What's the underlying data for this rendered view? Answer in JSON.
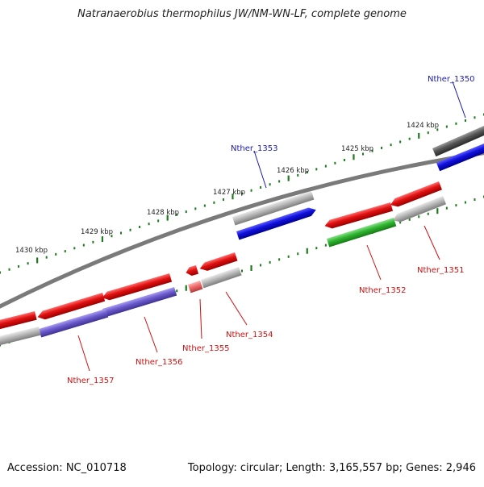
{
  "title": "Natranaerobius thermophilus JW/NM-WN-LF, complete genome",
  "footer": {
    "accession": "Accession: NC_010718",
    "summary": "Topology: circular; Length: 3,165,557 bp; Genes: 2,946"
  },
  "ticks": [
    {
      "label": "1424 kbp"
    },
    {
      "label": "1425 kbp"
    },
    {
      "label": "1426 kbp"
    },
    {
      "label": "1427 kbp"
    },
    {
      "label": "1428 kbp"
    },
    {
      "label": "1429 kbp"
    },
    {
      "label": "1430 kbp"
    }
  ],
  "genes": [
    {
      "label": "Nther_1350",
      "color": "#1a1aa8"
    },
    {
      "label": "Nther_1351",
      "color": "#cc1111"
    },
    {
      "label": "Nther_1352",
      "color": "#cc1111"
    },
    {
      "label": "Nther_1353",
      "color": "#1a1aa8"
    },
    {
      "label": "Nther_1354",
      "color": "#cc1111"
    },
    {
      "label": "Nther_1355",
      "color": "#cc1111"
    },
    {
      "label": "Nther_1356",
      "color": "#cc1111"
    },
    {
      "label": "Nther_1357",
      "color": "#cc1111"
    }
  ],
  "colors": {
    "backbone": "#777777",
    "tick": "#1e7a1e",
    "feature_red": "#e01010",
    "feature_blue": "#1010dd",
    "feature_green": "#2fb52f",
    "feature_purple": "#6a5acd",
    "feature_gray": "#b5b5b5",
    "feature_darkgray": "#555555",
    "feature_pink": "#ee6a6a"
  }
}
